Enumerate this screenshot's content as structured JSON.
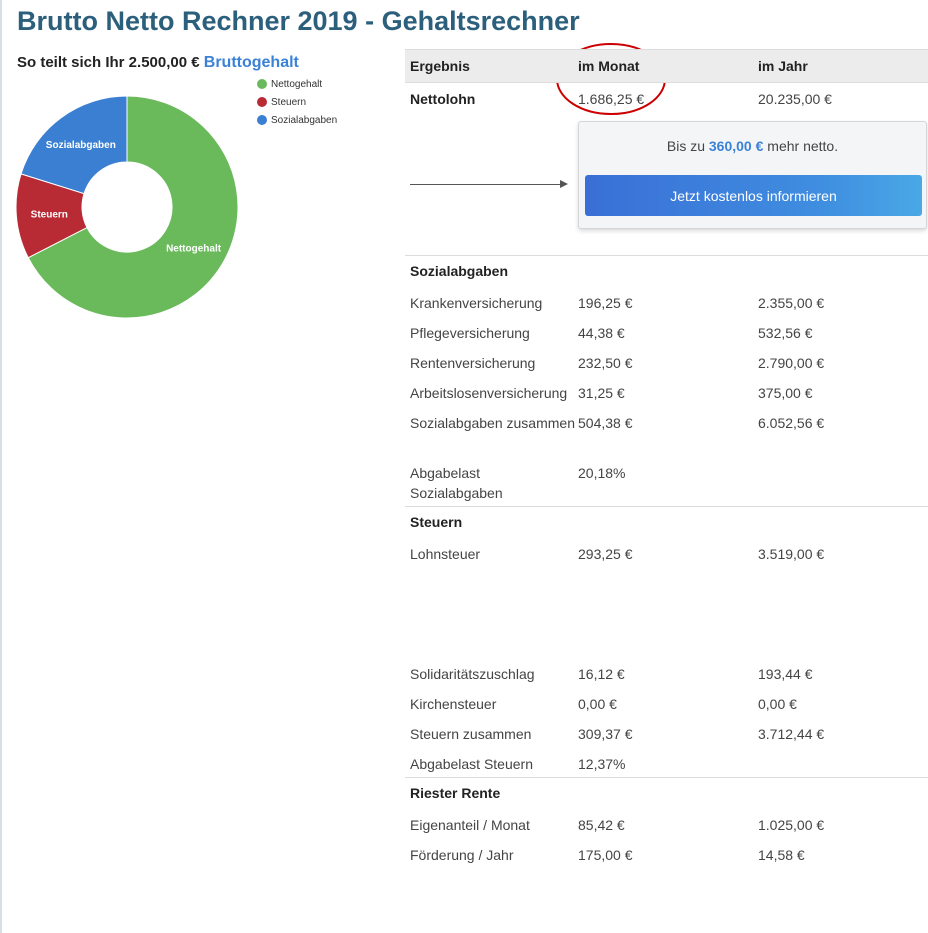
{
  "title": "Brutto Netto Rechner 2019 - Gehaltsrechner",
  "chart_heading": {
    "prefix": "So teilt sich Ihr 2.500,00 €",
    "accent": "Bruttogehalt"
  },
  "colors": {
    "netto": "#6aba5c",
    "steuern": "#b82b35",
    "sozial": "#3a7fd2",
    "accent": "#3b82d6",
    "annotation": "#cc0000"
  },
  "chart_data": {
    "type": "pie",
    "style": "donut",
    "categories": [
      "Nettogehalt",
      "Steuern",
      "Sozialabgaben"
    ],
    "values": [
      1686.25,
      309.37,
      504.38
    ],
    "legend": [
      "Nettogehalt",
      "Steuern",
      "Sozialabgaben"
    ],
    "legend_position": "top-right",
    "slice_labels": [
      "Nettogehalt",
      "Steuern",
      "Sozialabgaben"
    ]
  },
  "results": {
    "header": {
      "label": "Ergebnis",
      "month": "im Monat",
      "year": "im Jahr"
    },
    "netto": {
      "label": "Nettolohn",
      "month": "1.686,25 €",
      "year": "20.235,00 €"
    },
    "promo": {
      "prefix": "Bis zu",
      "highlight": "360,00 €",
      "suffix": "mehr netto.",
      "button": "Jetzt kostenlos informieren"
    },
    "sozial": {
      "title": "Sozialabgaben",
      "rows": [
        {
          "label": "Krankenversicherung",
          "month": "196,25 €",
          "year": "2.355,00 €"
        },
        {
          "label": "Pflegeversicherung",
          "month": "44,38 €",
          "year": "532,56 €"
        },
        {
          "label": "Rentenversicherung",
          "month": "232,50 €",
          "year": "2.790,00 €"
        },
        {
          "label": "Arbeitslosenversicherung",
          "month": "31,25 €",
          "year": "375,00 €"
        },
        {
          "label": "Sozialabgaben zusammen",
          "month": "504,38 €",
          "year": "6.052,56 €"
        },
        {
          "label": "Abgabelast Sozialabgaben",
          "month": "20,18%",
          "year": ""
        }
      ]
    },
    "steuern": {
      "title": "Steuern",
      "rows": [
        {
          "label": "Lohnsteuer",
          "month": "293,25 €",
          "year": "3.519,00 €"
        },
        {
          "label": "Solidaritätszuschlag",
          "month": "16,12 €",
          "year": "193,44 €"
        },
        {
          "label": "Kirchensteuer",
          "month": "0,00 €",
          "year": "0,00 €"
        },
        {
          "label": "Steuern zusammen",
          "month": "309,37 €",
          "year": "3.712,44 €"
        },
        {
          "label": "Abgabelast Steuern",
          "month": "12,37%",
          "year": ""
        }
      ]
    },
    "riester": {
      "title": "Riester Rente",
      "rows": [
        {
          "label": "Eigenanteil / Monat",
          "month": "85,42 €",
          "year": "1.025,00 €"
        },
        {
          "label": "Förderung / Jahr",
          "month": "175,00 €",
          "year": "14,58 €"
        }
      ]
    }
  }
}
